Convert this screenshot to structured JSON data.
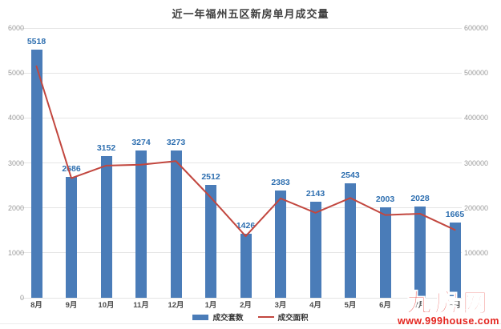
{
  "chart_data": {
    "type": "bar",
    "title": "近一年福州五区新房单月成交量",
    "categories": [
      "8月",
      "9月",
      "10月",
      "11月",
      "12月",
      "1月",
      "2月",
      "3月",
      "4月",
      "5月",
      "6月",
      "7月",
      "8月"
    ],
    "series": [
      {
        "name": "成交套数",
        "type": "bar",
        "axis": "left",
        "color": "#4a7cb8",
        "values": [
          5518,
          2686,
          3152,
          3274,
          3273,
          2512,
          1426,
          2383,
          2143,
          2543,
          2003,
          2028,
          1665
        ]
      },
      {
        "name": "成交面积",
        "type": "line",
        "axis": "right",
        "color": "#c2473f",
        "values": [
          515000,
          266000,
          294000,
          296000,
          304000,
          223000,
          137000,
          221000,
          189000,
          222000,
          184000,
          187000,
          151000
        ]
      }
    ],
    "left_axis": {
      "min": 0,
      "max": 6000,
      "ticks": [
        6000,
        5000,
        4000,
        3000,
        2000,
        1000,
        0
      ]
    },
    "right_axis": {
      "min": 0,
      "max": 600000,
      "ticks": [
        600000,
        500000,
        400000,
        300000,
        200000,
        100000,
        0
      ]
    },
    "grid": "horizontal",
    "legend_position": "bottom-center",
    "value_label_color": "#2e6fb0",
    "axis_label_color": "#9a9a9a"
  },
  "watermark": {
    "logo": "九房网",
    "url": "www.999house.com",
    "color": "#e4251f"
  }
}
